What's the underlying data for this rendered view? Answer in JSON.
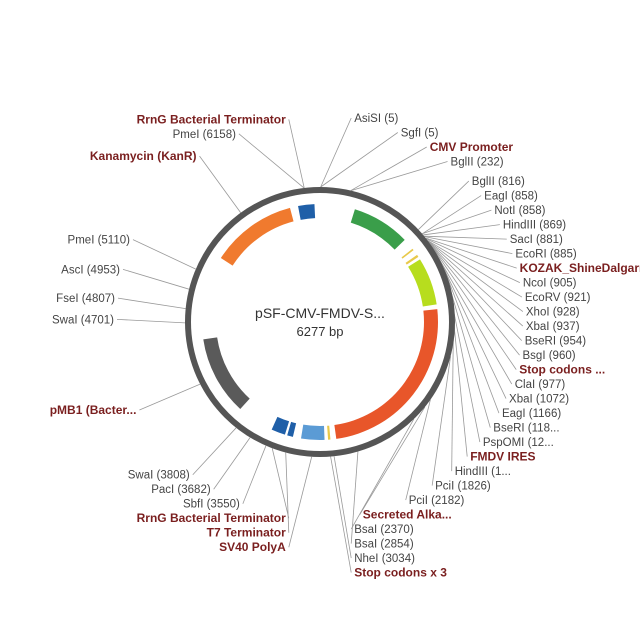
{
  "plasmid": {
    "name": "pSF-CMV-FMDV-S...",
    "size_label": "6277 bp",
    "total_bp": 6277
  },
  "colors": {
    "backbone": "#555555",
    "site_label": "#444444",
    "feature_label": "#7a1f1f",
    "leader": "#999999"
  },
  "features": [
    {
      "name": "CMV Promoter",
      "start": 300,
      "end": 800,
      "color": "#3a9e4a"
    },
    {
      "name": "KOZAK_ShineDalgarno",
      "start": 900,
      "end": 915,
      "color": "#e8c94a"
    },
    {
      "name": "Stop codons x3 (N)",
      "start": 965,
      "end": 985,
      "color": "#e8c94a"
    },
    {
      "name": "FMDV IRES",
      "start": 1010,
      "end": 1420,
      "color": "#b7dd1e"
    },
    {
      "name": "Secreted Alkaline Phosphatase",
      "start": 1460,
      "end": 3000,
      "color": "#e8562a"
    },
    {
      "name": "Stop codons x3",
      "start": 3050,
      "end": 3070,
      "color": "#e8c94a"
    },
    {
      "name": "SV40 PolyA",
      "start": 3100,
      "end": 3300,
      "color": "#5b9bd5"
    },
    {
      "name": "T7 Terminator",
      "start": 3370,
      "end": 3420,
      "color": "#1f5fa8"
    },
    {
      "name": "RrnG Bacterial Terminator (1)",
      "start": 3440,
      "end": 3560,
      "color": "#1f5fa8"
    },
    {
      "name": "pMB1 (Bacterial origin)",
      "start": 3880,
      "end": 4560,
      "color": "#5a5a5a"
    },
    {
      "name": "Kanamycin (KanR)",
      "start": 5280,
      "end": 6020,
      "color": "#f07a2e"
    },
    {
      "name": "RrnG Bacterial Terminator (2)",
      "start": 6090,
      "end": 6230,
      "color": "#1f5fa8"
    }
  ],
  "sites": [
    {
      "text": "RrnG Bacterial Terminator",
      "kind": "feature",
      "bp": 6160
    },
    {
      "text": "PmeI (6158)",
      "kind": "site",
      "bp": 6158
    },
    {
      "text": "AsiSI (5)",
      "kind": "site",
      "bp": 5
    },
    {
      "text": "SgfI (5)",
      "kind": "site",
      "bp": 5
    },
    {
      "text": "CMV Promoter",
      "kind": "feature",
      "bp": 230
    },
    {
      "text": "BglII (232)",
      "kind": "site",
      "bp": 232
    },
    {
      "text": "BglII (816)",
      "kind": "site",
      "bp": 816
    },
    {
      "text": "EagI (858)",
      "kind": "site",
      "bp": 858
    },
    {
      "text": "NotI (858)",
      "kind": "site",
      "bp": 858
    },
    {
      "text": "HindIII (869)",
      "kind": "site",
      "bp": 869
    },
    {
      "text": "SacI (881)",
      "kind": "site",
      "bp": 881
    },
    {
      "text": "EcoRI (885)",
      "kind": "site",
      "bp": 885
    },
    {
      "text": "KOZAK_ShineDalgarno",
      "kind": "feature",
      "bp": 900
    },
    {
      "text": "NcoI (905)",
      "kind": "site",
      "bp": 905
    },
    {
      "text": "EcoRV (921)",
      "kind": "site",
      "bp": 921
    },
    {
      "text": "XhoI (928)",
      "kind": "site",
      "bp": 928
    },
    {
      "text": "XbaI (937)",
      "kind": "site",
      "bp": 937
    },
    {
      "text": "BseRI (954)",
      "kind": "site",
      "bp": 954
    },
    {
      "text": "BsgI (960)",
      "kind": "site",
      "bp": 960
    },
    {
      "text": "Stop codons ...",
      "kind": "feature",
      "bp": 968
    },
    {
      "text": "ClaI (977)",
      "kind": "site",
      "bp": 977
    },
    {
      "text": "XbaI (1072)",
      "kind": "site",
      "bp": 1072
    },
    {
      "text": "EagI (1166)",
      "kind": "site",
      "bp": 1166
    },
    {
      "text": "BseRI (118...",
      "kind": "site",
      "bp": 1185
    },
    {
      "text": "PspOMI (12...",
      "kind": "site",
      "bp": 1210
    },
    {
      "text": "FMDV IRES",
      "kind": "feature",
      "bp": 1300
    },
    {
      "text": "HindIII (1...",
      "kind": "site",
      "bp": 1430
    },
    {
      "text": "PciI (1826)",
      "kind": "site",
      "bp": 1826
    },
    {
      "text": "PciI (2182)",
      "kind": "site",
      "bp": 2182
    },
    {
      "text": "Secreted Alka...",
      "kind": "feature",
      "bp": 2250
    },
    {
      "text": "BsaI (2370)",
      "kind": "site",
      "bp": 2370
    },
    {
      "text": "BsaI (2854)",
      "kind": "site",
      "bp": 2854
    },
    {
      "text": "NheI (3034)",
      "kind": "site",
      "bp": 3034
    },
    {
      "text": "Stop codons x 3",
      "kind": "feature",
      "bp": 3060
    },
    {
      "text": "SV40 PolyA",
      "kind": "feature",
      "bp": 3200
    },
    {
      "text": "T7 Terminator",
      "kind": "feature",
      "bp": 3395
    },
    {
      "text": "RrnG Bacterial Terminator",
      "kind": "feature",
      "bp": 3500
    },
    {
      "text": "SbfI (3550)",
      "kind": "site",
      "bp": 3550
    },
    {
      "text": "PacI (3682)",
      "kind": "site",
      "bp": 3682
    },
    {
      "text": "SwaI (3808)",
      "kind": "site",
      "bp": 3808
    },
    {
      "text": "pMB1 (Bacter...",
      "kind": "feature",
      "bp": 4230
    },
    {
      "text": "SwaI (4701)",
      "kind": "site",
      "bp": 4701
    },
    {
      "text": "FseI (4807)",
      "kind": "site",
      "bp": 4807
    },
    {
      "text": "AscI (4953)",
      "kind": "site",
      "bp": 4953
    },
    {
      "text": "PmeI (5110)",
      "kind": "site",
      "bp": 5110
    },
    {
      "text": "Kanamycin (KanR)",
      "kind": "feature",
      "bp": 5650
    }
  ]
}
